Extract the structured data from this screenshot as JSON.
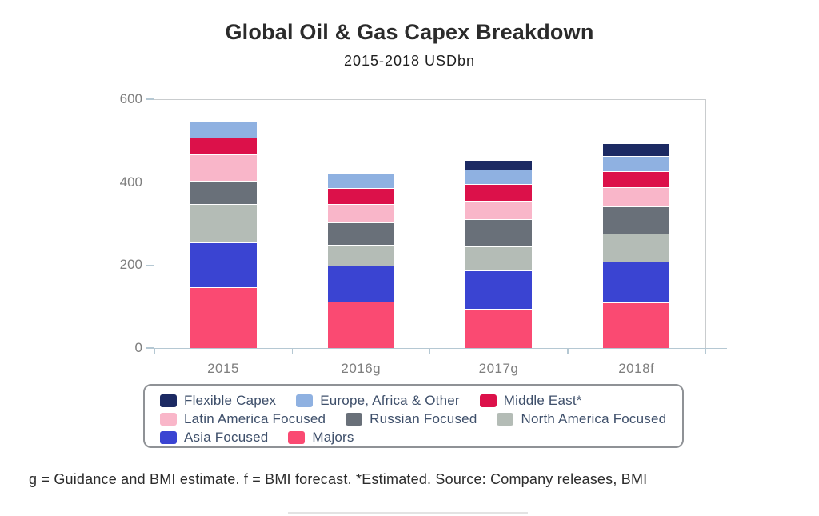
{
  "page": {
    "title": "Global Oil & Gas Capex Breakdown",
    "subtitle": "2015-2018 USDbn",
    "footnote": "g = Guidance and BMI estimate. f = BMI forecast. *Estimated. Source: Company releases, BMI"
  },
  "chart_data": {
    "type": "bar",
    "stacked": true,
    "title": "Global Oil & Gas Capex Breakdown",
    "subtitle": "2015-2018 USDbn",
    "categories": [
      "2015",
      "2016g",
      "2017g",
      "2018f"
    ],
    "series": [
      {
        "name": "Flexible Capex",
        "color": "#1c2a63",
        "values": [
          0,
          0,
          24,
          31
        ]
      },
      {
        "name": "Europe, Africa & Other",
        "color": "#8fb1e1",
        "values": [
          39,
          34,
          34,
          36
        ]
      },
      {
        "name": "Middle East*",
        "color": "#dc114a",
        "values": [
          40,
          38,
          41,
          40
        ]
      },
      {
        "name": "Latin America Focused",
        "color": "#f9b6c9",
        "values": [
          64,
          45,
          45,
          45
        ]
      },
      {
        "name": "Russian Focused",
        "color": "#697079",
        "values": [
          55,
          55,
          65,
          66
        ]
      },
      {
        "name": "North America Focused",
        "color": "#b4bcb6",
        "values": [
          93,
          50,
          57,
          67
        ]
      },
      {
        "name": "Asia Focused",
        "color": "#3a44d2",
        "values": [
          109,
          86,
          93,
          100
        ]
      },
      {
        "name": "Majors",
        "color": "#fa4a72",
        "values": [
          144,
          110,
          93,
          107
        ]
      }
    ],
    "stack_order_bottom_to_top": [
      "Majors",
      "Asia Focused",
      "North America Focused",
      "Russian Focused",
      "Latin America Focused",
      "Middle East*",
      "Europe, Africa & Other",
      "Flexible Capex"
    ],
    "approx_totals": [
      544,
      418,
      452,
      492
    ],
    "ylim": [
      0,
      600
    ],
    "yticks": [
      0,
      200,
      400,
      600
    ],
    "xlabel": "",
    "ylabel": "",
    "grid": false,
    "legend_position": "bottom",
    "legend_order": [
      "Flexible Capex",
      "Europe, Africa & Other",
      "Middle East*",
      "Latin America Focused",
      "Russian Focused",
      "North America Focused",
      "Asia Focused",
      "Majors"
    ]
  },
  "appearance": {
    "axis_color": "#b5c8d3",
    "plot_border_color": "#c9ccce",
    "tick_label_color": "#7e7e7e",
    "legend_text_color": "#3f506b",
    "legend_border_color": "#8f9296"
  }
}
